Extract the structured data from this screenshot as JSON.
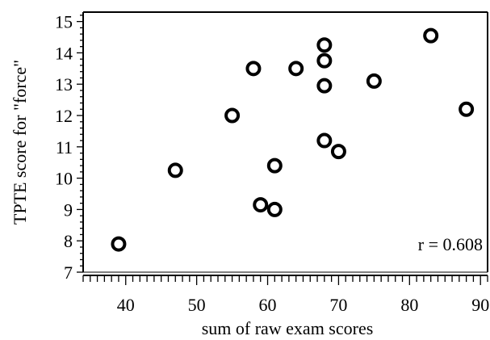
{
  "chart_data": {
    "type": "scatter",
    "title": "",
    "xlabel": "sum of raw exam scores",
    "ylabel": "TPTE score for \"force\"",
    "xlim": [
      34,
      91
    ],
    "ylim": [
      7,
      15.3
    ],
    "x_ticks": [
      40,
      50,
      60,
      70,
      80,
      90
    ],
    "y_ticks": [
      7,
      8,
      9,
      10,
      11,
      12,
      13,
      14,
      15
    ],
    "x_minor_step": 1,
    "y_minor_step": 0.2,
    "grid": false,
    "legend": "none",
    "annotation": "r = 0.608",
    "marker": "open-circle",
    "marker_color": "#000000",
    "series": [
      {
        "points": [
          {
            "x": 39,
            "y": 7.9
          },
          {
            "x": 47,
            "y": 10.25
          },
          {
            "x": 55,
            "y": 12.0
          },
          {
            "x": 58,
            "y": 13.5
          },
          {
            "x": 59,
            "y": 9.15
          },
          {
            "x": 61,
            "y": 9.0
          },
          {
            "x": 61,
            "y": 10.4
          },
          {
            "x": 64,
            "y": 13.5
          },
          {
            "x": 68,
            "y": 14.25
          },
          {
            "x": 68,
            "y": 13.75
          },
          {
            "x": 68,
            "y": 12.95
          },
          {
            "x": 68,
            "y": 11.2
          },
          {
            "x": 70,
            "y": 10.85
          },
          {
            "x": 75,
            "y": 13.1
          },
          {
            "x": 83,
            "y": 14.55
          },
          {
            "x": 88,
            "y": 12.2
          }
        ]
      }
    ]
  }
}
